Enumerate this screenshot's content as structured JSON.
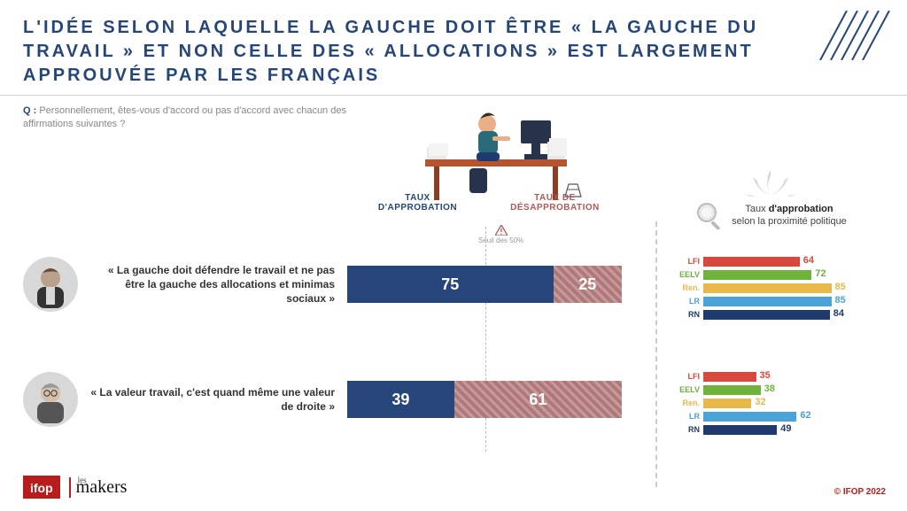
{
  "title": "L'IDÉE SELON LAQUELLE LA GAUCHE DOIT ÊTRE « LA GAUCHE DU TRAVAIL » ET NON CELLE DES « ALLOCATIONS » EST LARGEMENT APPROUVÉE PAR LES FRANÇAIS",
  "question_label": "Q :",
  "question_text": "Personnellement, êtes-vous d'accord ou pas d'accord avec chacun des affirmations suivantes ?",
  "columns": {
    "approve_prefix": "TAUX",
    "approve": "D'APPROBATION",
    "disapprove_prefix": "TAUX DE",
    "disapprove": "DÉSAPPROBATION"
  },
  "threshold_label": "Seuil des 50%",
  "rows": [
    {
      "quote": "« La gauche doit défendre le travail et ne pas être la gauche des allocations et minimas sociaux »",
      "approve": 75,
      "disapprove": 25
    },
    {
      "quote": "« La valeur travail, c'est quand même une valeur de droite »",
      "approve": 39,
      "disapprove": 61
    }
  ],
  "bar_colors": {
    "approve": "#26467a",
    "disapprove": "#b07878"
  },
  "right_title_plain": "Taux ",
  "right_title_bold": "d'approbation",
  "right_title_line2": "selon la proximité politique",
  "parties": [
    {
      "key": "LFI",
      "label": "LFI",
      "color": "#d9483b"
    },
    {
      "key": "EELV",
      "label": "EELV",
      "color": "#6fb23c"
    },
    {
      "key": "Ren",
      "label": "Ren.",
      "color": "#e8b84a"
    },
    {
      "key": "LR",
      "label": "LR",
      "color": "#4aa3d9"
    },
    {
      "key": "RN",
      "label": "RN",
      "color": "#1f3a6e"
    }
  ],
  "mini_charts": [
    {
      "values": {
        "LFI": 64,
        "EELV": 72,
        "Ren": 85,
        "LR": 85,
        "RN": 84
      },
      "max": 100
    },
    {
      "values": {
        "LFI": 35,
        "EELV": 38,
        "Ren": 32,
        "LR": 62,
        "RN": 49
      },
      "max": 100
    }
  ],
  "logos": {
    "ifop": "ifop",
    "makers_small": "les",
    "makers": "makers"
  },
  "copyright": "© IFOP 2022"
}
